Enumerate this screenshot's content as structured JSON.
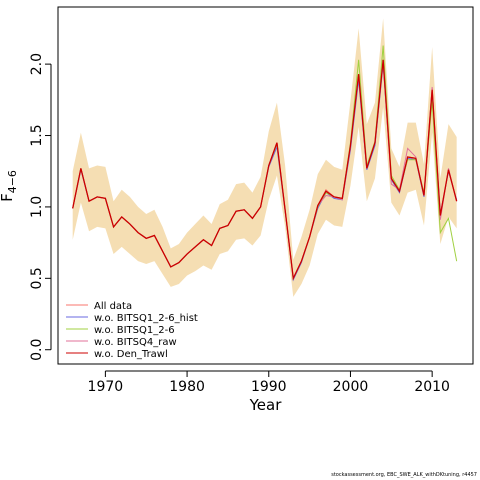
{
  "chart_data": {
    "type": "line",
    "xlabel": "Year",
    "ylabel": "F̄ 4−6",
    "xlim": [
      1964.2,
      2015.0
    ],
    "ylim": [
      -0.1,
      2.4
    ],
    "x_ticks": [
      1970,
      1980,
      1990,
      2000,
      2010
    ],
    "y_ticks": [
      0.0,
      0.5,
      1.0,
      1.5,
      2.0
    ],
    "x_tick_labels": [
      "1970",
      "1980",
      "1990",
      "2000",
      "2010"
    ],
    "y_tick_labels": [
      "0.0",
      "0.5",
      "1.0",
      "1.5",
      "2.0"
    ],
    "grid": false,
    "legend_position": "bottom-left",
    "band_color": "#f5deb3",
    "x": [
      1966,
      1967,
      1968,
      1969,
      1970,
      1971,
      1972,
      1973,
      1974,
      1975,
      1976,
      1977,
      1978,
      1979,
      1980,
      1981,
      1982,
      1983,
      1984,
      1985,
      1986,
      1987,
      1988,
      1989,
      1990,
      1991,
      1992,
      1993,
      1994,
      1995,
      1996,
      1997,
      1998,
      1999,
      2000,
      2001,
      2002,
      2003,
      2004,
      2005,
      2006,
      2007,
      2008,
      2009,
      2010,
      2011,
      2012,
      2013
    ],
    "band_lower": [
      0.77,
      1.03,
      0.83,
      0.86,
      0.85,
      0.67,
      0.72,
      0.67,
      0.62,
      0.6,
      0.62,
      0.53,
      0.44,
      0.46,
      0.52,
      0.55,
      0.59,
      0.56,
      0.67,
      0.69,
      0.77,
      0.78,
      0.73,
      0.8,
      1.05,
      1.22,
      0.86,
      0.37,
      0.46,
      0.59,
      0.81,
      0.91,
      0.87,
      0.86,
      1.15,
      1.56,
      1.04,
      1.2,
      1.7,
      1.03,
      0.94,
      1.1,
      1.12,
      0.87,
      1.52,
      0.74,
      0.93,
      0.85
    ],
    "band_upper": [
      1.25,
      1.52,
      1.27,
      1.29,
      1.28,
      1.04,
      1.12,
      1.07,
      1.0,
      0.95,
      0.98,
      0.86,
      0.71,
      0.74,
      0.82,
      0.88,
      0.94,
      0.88,
      1.02,
      1.05,
      1.16,
      1.17,
      1.1,
      1.21,
      1.53,
      1.73,
      1.29,
      0.63,
      0.79,
      0.98,
      1.23,
      1.33,
      1.28,
      1.26,
      1.74,
      2.25,
      1.58,
      1.73,
      2.32,
      1.41,
      1.28,
      1.59,
      1.59,
      1.3,
      2.12,
      1.2,
      1.58,
      1.49
    ],
    "series": [
      {
        "name": "All data",
        "color": "#f8766d",
        "dash": "",
        "values": [
          0.99,
          1.27,
          1.04,
          1.07,
          1.06,
          0.86,
          0.93,
          0.88,
          0.82,
          0.78,
          0.8,
          0.69,
          0.58,
          0.61,
          0.67,
          0.72,
          0.77,
          0.73,
          0.85,
          0.87,
          0.97,
          0.98,
          0.92,
          1.0,
          1.29,
          1.45,
          0.98,
          0.5,
          0.62,
          0.79,
          1.01,
          1.12,
          1.07,
          1.06,
          1.43,
          1.92,
          1.27,
          1.44,
          2.02,
          1.2,
          1.11,
          1.35,
          1.34,
          1.08,
          1.83,
          0.93,
          1.26,
          1.04
        ]
      },
      {
        "name": "w.o. BITSQ1_2-6_hist",
        "color": "#6a6ae0",
        "dash": "",
        "values": [
          0.99,
          1.26,
          1.04,
          1.07,
          1.06,
          0.86,
          0.93,
          0.88,
          0.82,
          0.78,
          0.8,
          0.69,
          0.58,
          0.61,
          0.67,
          0.72,
          0.77,
          0.73,
          0.85,
          0.87,
          0.97,
          0.98,
          0.92,
          1.0,
          1.28,
          1.42,
          0.97,
          0.49,
          0.61,
          0.79,
          0.99,
          1.1,
          1.06,
          1.05,
          1.4,
          1.89,
          1.26,
          1.43,
          2.0,
          1.19,
          1.1,
          1.34,
          1.33,
          1.07,
          1.8,
          0.95,
          1.25,
          1.05
        ]
      },
      {
        "name": "w.o. BITSQ1_2-6",
        "color": "#a0d040",
        "dash": "",
        "values": [
          0.99,
          1.27,
          1.04,
          1.07,
          1.06,
          0.86,
          0.93,
          0.88,
          0.82,
          0.78,
          0.8,
          0.69,
          0.58,
          0.61,
          0.67,
          0.72,
          0.77,
          0.73,
          0.85,
          0.87,
          0.97,
          0.98,
          0.92,
          1.0,
          1.29,
          1.44,
          0.98,
          0.5,
          0.62,
          0.79,
          1.0,
          1.1,
          1.07,
          1.06,
          1.45,
          2.03,
          1.29,
          1.46,
          2.13,
          1.22,
          1.12,
          1.33,
          1.33,
          1.1,
          1.74,
          0.82,
          0.92,
          0.62
        ]
      },
      {
        "name": "w.o. BITSQ4_raw",
        "color": "#e0709a",
        "dash": "",
        "values": [
          0.99,
          1.27,
          1.04,
          1.07,
          1.06,
          0.86,
          0.93,
          0.88,
          0.82,
          0.78,
          0.8,
          0.69,
          0.58,
          0.61,
          0.67,
          0.72,
          0.77,
          0.73,
          0.85,
          0.87,
          0.97,
          0.98,
          0.92,
          1.0,
          1.29,
          1.45,
          0.98,
          0.5,
          0.62,
          0.79,
          1.01,
          1.08,
          1.07,
          1.05,
          1.42,
          1.92,
          1.27,
          1.45,
          2.02,
          1.16,
          1.12,
          1.41,
          1.35,
          1.08,
          1.84,
          0.91,
          1.27,
          1.04
        ]
      },
      {
        "name": "w.o. Den_Trawl",
        "color": "#cc0000",
        "dash": "",
        "values": [
          0.99,
          1.27,
          1.04,
          1.07,
          1.06,
          0.86,
          0.93,
          0.88,
          0.82,
          0.78,
          0.8,
          0.69,
          0.58,
          0.61,
          0.67,
          0.72,
          0.77,
          0.73,
          0.85,
          0.87,
          0.97,
          0.98,
          0.92,
          1.0,
          1.29,
          1.45,
          0.98,
          0.5,
          0.62,
          0.79,
          1.01,
          1.11,
          1.07,
          1.06,
          1.43,
          1.93,
          1.27,
          1.45,
          2.03,
          1.2,
          1.11,
          1.35,
          1.34,
          1.08,
          1.82,
          0.94,
          1.26,
          1.04
        ]
      }
    ]
  },
  "footnote": "stockassessment.org, EBC_SWE_ALK_withDKtuning, r4457"
}
